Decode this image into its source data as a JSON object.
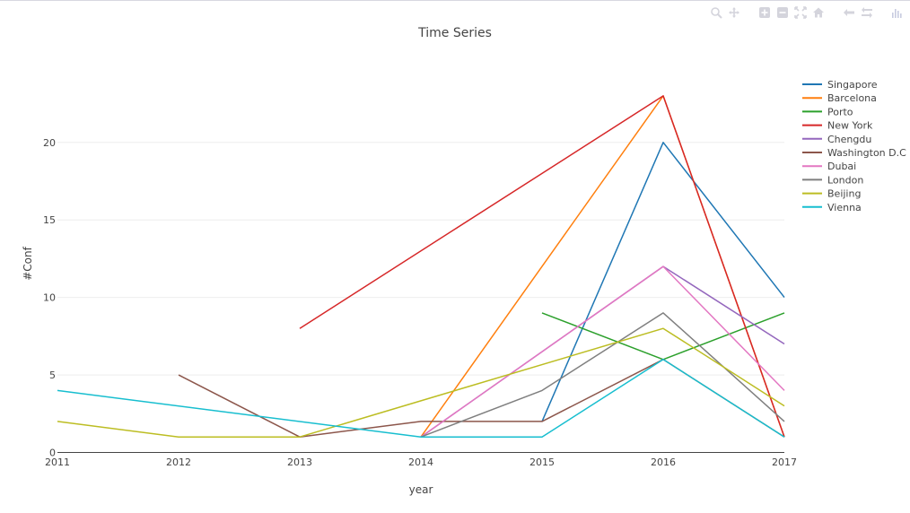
{
  "modebar": {
    "icons": [
      "zoom-icon",
      "pan-icon",
      "zoom-in-icon",
      "zoom-out-icon",
      "autoscale-icon",
      "reset-axes-icon",
      "spike-lines-icon",
      "compare-hover-icon",
      "plotly-logo-icon"
    ]
  },
  "chart_data": {
    "type": "line",
    "title": "Time Series",
    "xlabel": "year",
    "ylabel": "#Conf",
    "xlim": [
      2011,
      2017
    ],
    "ylim": [
      0,
      24.5
    ],
    "x_ticks": [
      "2011",
      "2012",
      "2013",
      "2014",
      "2015",
      "2016",
      "2017"
    ],
    "y_ticks": [
      "0",
      "5",
      "10",
      "15",
      "20"
    ],
    "grid": true,
    "legend_position": "right",
    "series": [
      {
        "name": "Singapore",
        "color": "#1f77b4",
        "points": [
          [
            2015,
            2
          ],
          [
            2016,
            20
          ],
          [
            2017,
            10
          ]
        ]
      },
      {
        "name": "Barcelona",
        "color": "#ff7f0e",
        "points": [
          [
            2014,
            1
          ],
          [
            2016,
            23
          ],
          [
            2017,
            1
          ]
        ]
      },
      {
        "name": "Porto",
        "color": "#2ca02c",
        "points": [
          [
            2015,
            9
          ],
          [
            2016,
            6
          ],
          [
            2017,
            9
          ]
        ]
      },
      {
        "name": "New York",
        "color": "#d62728",
        "points": [
          [
            2013,
            8
          ],
          [
            2016,
            23
          ],
          [
            2017,
            1
          ]
        ]
      },
      {
        "name": "Chengdu",
        "color": "#9467bd",
        "points": [
          [
            2014,
            1
          ],
          [
            2016,
            12
          ],
          [
            2017,
            7
          ]
        ]
      },
      {
        "name": "Washington D.C",
        "color": "#8c564b",
        "points": [
          [
            2012,
            5
          ],
          [
            2013,
            1
          ],
          [
            2014,
            2
          ],
          [
            2015,
            2
          ],
          [
            2016,
            6
          ],
          [
            2017,
            1
          ]
        ]
      },
      {
        "name": "Dubai",
        "color": "#e377c2",
        "points": [
          [
            2014,
            1
          ],
          [
            2016,
            12
          ],
          [
            2017,
            4
          ]
        ]
      },
      {
        "name": "London",
        "color": "#7f7f7f",
        "points": [
          [
            2014,
            1
          ],
          [
            2015,
            4
          ],
          [
            2016,
            9
          ],
          [
            2017,
            2
          ]
        ]
      },
      {
        "name": "Beijing",
        "color": "#bcbd22",
        "points": [
          [
            2011,
            2
          ],
          [
            2012,
            1
          ],
          [
            2013,
            1
          ],
          [
            2016,
            8
          ],
          [
            2017,
            3
          ]
        ]
      },
      {
        "name": "Vienna",
        "color": "#17becf",
        "points": [
          [
            2011,
            4
          ],
          [
            2014,
            1
          ],
          [
            2015,
            1
          ],
          [
            2016,
            6
          ],
          [
            2017,
            1
          ]
        ]
      }
    ]
  }
}
